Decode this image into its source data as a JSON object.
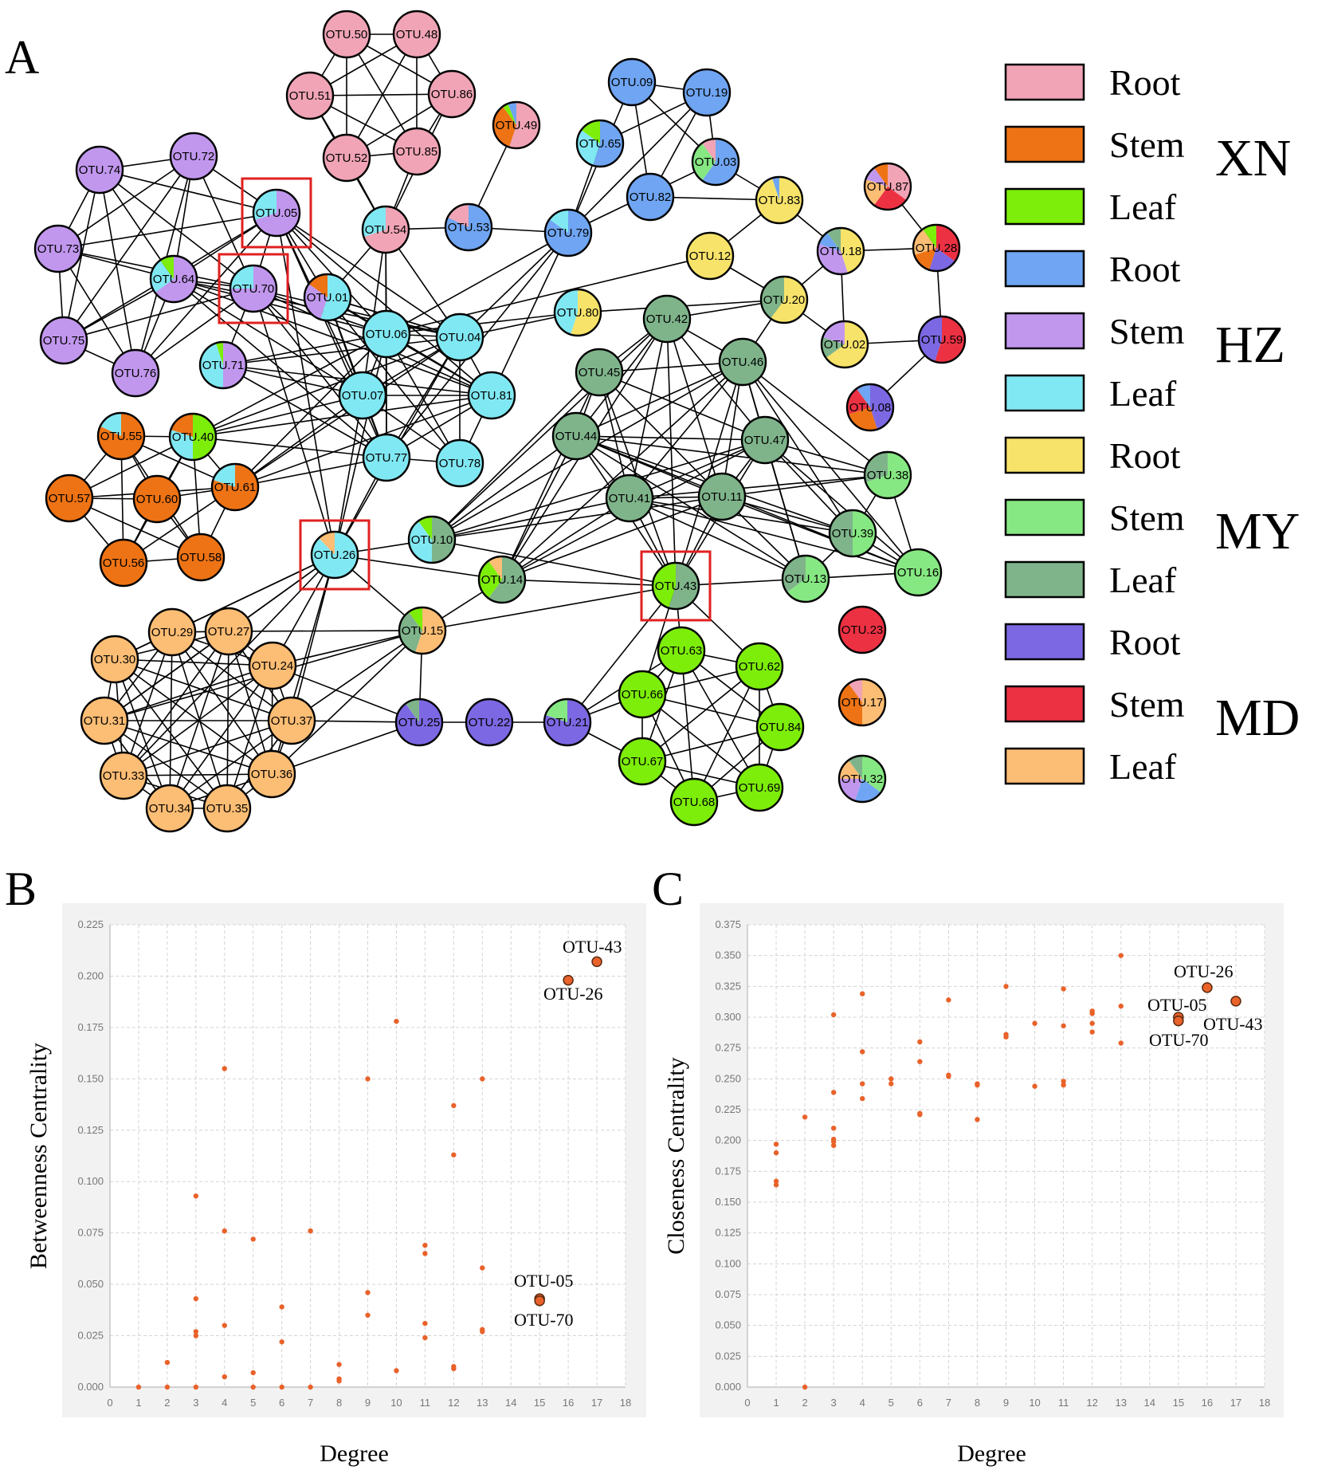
{
  "panel_a": {
    "letter": "A",
    "node_prefix": "OTU.",
    "colors": {
      "xn_root": "#f0a4b5",
      "xn_stem": "#ee7314",
      "xn_leaf": "#7ded0a",
      "hz_root": "#6fa5f2",
      "hz_stem": "#c197ee",
      "hz_leaf": "#80e8f2",
      "my_root": "#f7e36a",
      "my_stem": "#86e882",
      "my_leaf": "#7fb48b",
      "md_root": "#7c68e3",
      "md_stem": "#ec3143",
      "md_leaf": "#fcbd74",
      "highlight": "#e02020",
      "edge": "#000000"
    },
    "legend": [
      {
        "label": "Root",
        "color": "#f0a4b5"
      },
      {
        "label": "Stem",
        "color": "#ee7314"
      },
      {
        "label": "Leaf",
        "color": "#7ded0a"
      },
      {
        "label": "Root",
        "color": "#6fa5f2"
      },
      {
        "label": "Stem",
        "color": "#c197ee"
      },
      {
        "label": "Leaf",
        "color": "#80e8f2"
      },
      {
        "label": "Root",
        "color": "#f7e36a"
      },
      {
        "label": "Stem",
        "color": "#86e882"
      },
      {
        "label": "Leaf",
        "color": "#7fb48b"
      },
      {
        "label": "Root",
        "color": "#7c68e3"
      },
      {
        "label": "Stem",
        "color": "#ec3143"
      },
      {
        "label": "Leaf",
        "color": "#fcbd74"
      }
    ],
    "groups": [
      "XN",
      "HZ",
      "MY",
      "MD"
    ],
    "highlighted": [
      "05",
      "70",
      "26",
      "43"
    ]
  },
  "chart_data": [
    {
      "type": "scatter",
      "panel": "B",
      "title": "",
      "xlabel": "Degree",
      "ylabel": "Betweenness Centrality",
      "xlim": [
        0,
        18
      ],
      "ylim": [
        0,
        0.225
      ],
      "xticks": [
        0,
        1,
        2,
        3,
        4,
        5,
        6,
        7,
        8,
        9,
        10,
        11,
        12,
        13,
        14,
        15,
        16,
        17,
        18
      ],
      "yticks": [
        0.0,
        0.025,
        0.05,
        0.075,
        0.1,
        0.125,
        0.15,
        0.175,
        0.2,
        0.225
      ],
      "points": [
        [
          1,
          0.0
        ],
        [
          2,
          0.0
        ],
        [
          2,
          0.012
        ],
        [
          3,
          0.0
        ],
        [
          3,
          0.025
        ],
        [
          3,
          0.027
        ],
        [
          3,
          0.043
        ],
        [
          3,
          0.093
        ],
        [
          4,
          0.005
        ],
        [
          4,
          0.03
        ],
        [
          4,
          0.076
        ],
        [
          4,
          0.155
        ],
        [
          5,
          0.0
        ],
        [
          5,
          0.007
        ],
        [
          5,
          0.072
        ],
        [
          6,
          0.0
        ],
        [
          6,
          0.022
        ],
        [
          6,
          0.039
        ],
        [
          7,
          0.0
        ],
        [
          7,
          0.076
        ],
        [
          8,
          0.003
        ],
        [
          8,
          0.004
        ],
        [
          8,
          0.011
        ],
        [
          9,
          0.035
        ],
        [
          9,
          0.046
        ],
        [
          9,
          0.15
        ],
        [
          10,
          0.008
        ],
        [
          10,
          0.178
        ],
        [
          11,
          0.024
        ],
        [
          11,
          0.031
        ],
        [
          11,
          0.065
        ],
        [
          11,
          0.069
        ],
        [
          12,
          0.009
        ],
        [
          12,
          0.01
        ],
        [
          12,
          0.113
        ],
        [
          12,
          0.137
        ],
        [
          13,
          0.027
        ],
        [
          13,
          0.028
        ],
        [
          13,
          0.058
        ],
        [
          13,
          0.15
        ]
      ],
      "highlight_points": [
        {
          "x": 17,
          "y": 0.207,
          "label": "OTU-43"
        },
        {
          "x": 16,
          "y": 0.198,
          "label": "OTU-26"
        },
        {
          "x": 15,
          "y": 0.043,
          "label": "OTU-05"
        },
        {
          "x": 15,
          "y": 0.042,
          "label": "OTU-70"
        }
      ]
    },
    {
      "type": "scatter",
      "panel": "C",
      "title": "",
      "xlabel": "Degree",
      "ylabel": "Closeness Centrality",
      "xlim": [
        0,
        18
      ],
      "ylim": [
        0,
        0.375
      ],
      "xticks": [
        0,
        1,
        2,
        3,
        4,
        5,
        6,
        7,
        8,
        9,
        10,
        11,
        12,
        13,
        14,
        15,
        16,
        17,
        18
      ],
      "yticks": [
        0.0,
        0.025,
        0.05,
        0.075,
        0.1,
        0.125,
        0.15,
        0.175,
        0.2,
        0.225,
        0.25,
        0.275,
        0.3,
        0.325,
        0.35,
        0.375
      ],
      "points": [
        [
          1,
          0.164
        ],
        [
          1,
          0.167
        ],
        [
          1,
          0.19
        ],
        [
          1,
          0.197
        ],
        [
          2,
          0.0
        ],
        [
          2,
          0.219
        ],
        [
          3,
          0.196
        ],
        [
          3,
          0.199
        ],
        [
          3,
          0.201
        ],
        [
          3,
          0.21
        ],
        [
          3,
          0.239
        ],
        [
          3,
          0.302
        ],
        [
          4,
          0.234
        ],
        [
          4,
          0.246
        ],
        [
          4,
          0.272
        ],
        [
          4,
          0.319
        ],
        [
          5,
          0.246
        ],
        [
          5,
          0.25
        ],
        [
          6,
          0.221
        ],
        [
          6,
          0.222
        ],
        [
          6,
          0.264
        ],
        [
          6,
          0.28
        ],
        [
          7,
          0.252
        ],
        [
          7,
          0.253
        ],
        [
          7,
          0.314
        ],
        [
          8,
          0.217
        ],
        [
          8,
          0.245
        ],
        [
          8,
          0.246
        ],
        [
          9,
          0.284
        ],
        [
          9,
          0.286
        ],
        [
          9,
          0.325
        ],
        [
          10,
          0.244
        ],
        [
          10,
          0.295
        ],
        [
          11,
          0.245
        ],
        [
          11,
          0.248
        ],
        [
          11,
          0.293
        ],
        [
          11,
          0.323
        ],
        [
          12,
          0.288
        ],
        [
          12,
          0.295
        ],
        [
          12,
          0.303
        ],
        [
          12,
          0.305
        ],
        [
          13,
          0.279
        ],
        [
          13,
          0.309
        ],
        [
          13,
          0.35
        ]
      ],
      "highlight_points": [
        {
          "x": 16,
          "y": 0.324,
          "label": "OTU-26"
        },
        {
          "x": 17,
          "y": 0.313,
          "label": "OTU-43"
        },
        {
          "x": 15,
          "y": 0.3,
          "label": "OTU-05"
        },
        {
          "x": 15,
          "y": 0.297,
          "label": "OTU-70"
        }
      ]
    }
  ]
}
